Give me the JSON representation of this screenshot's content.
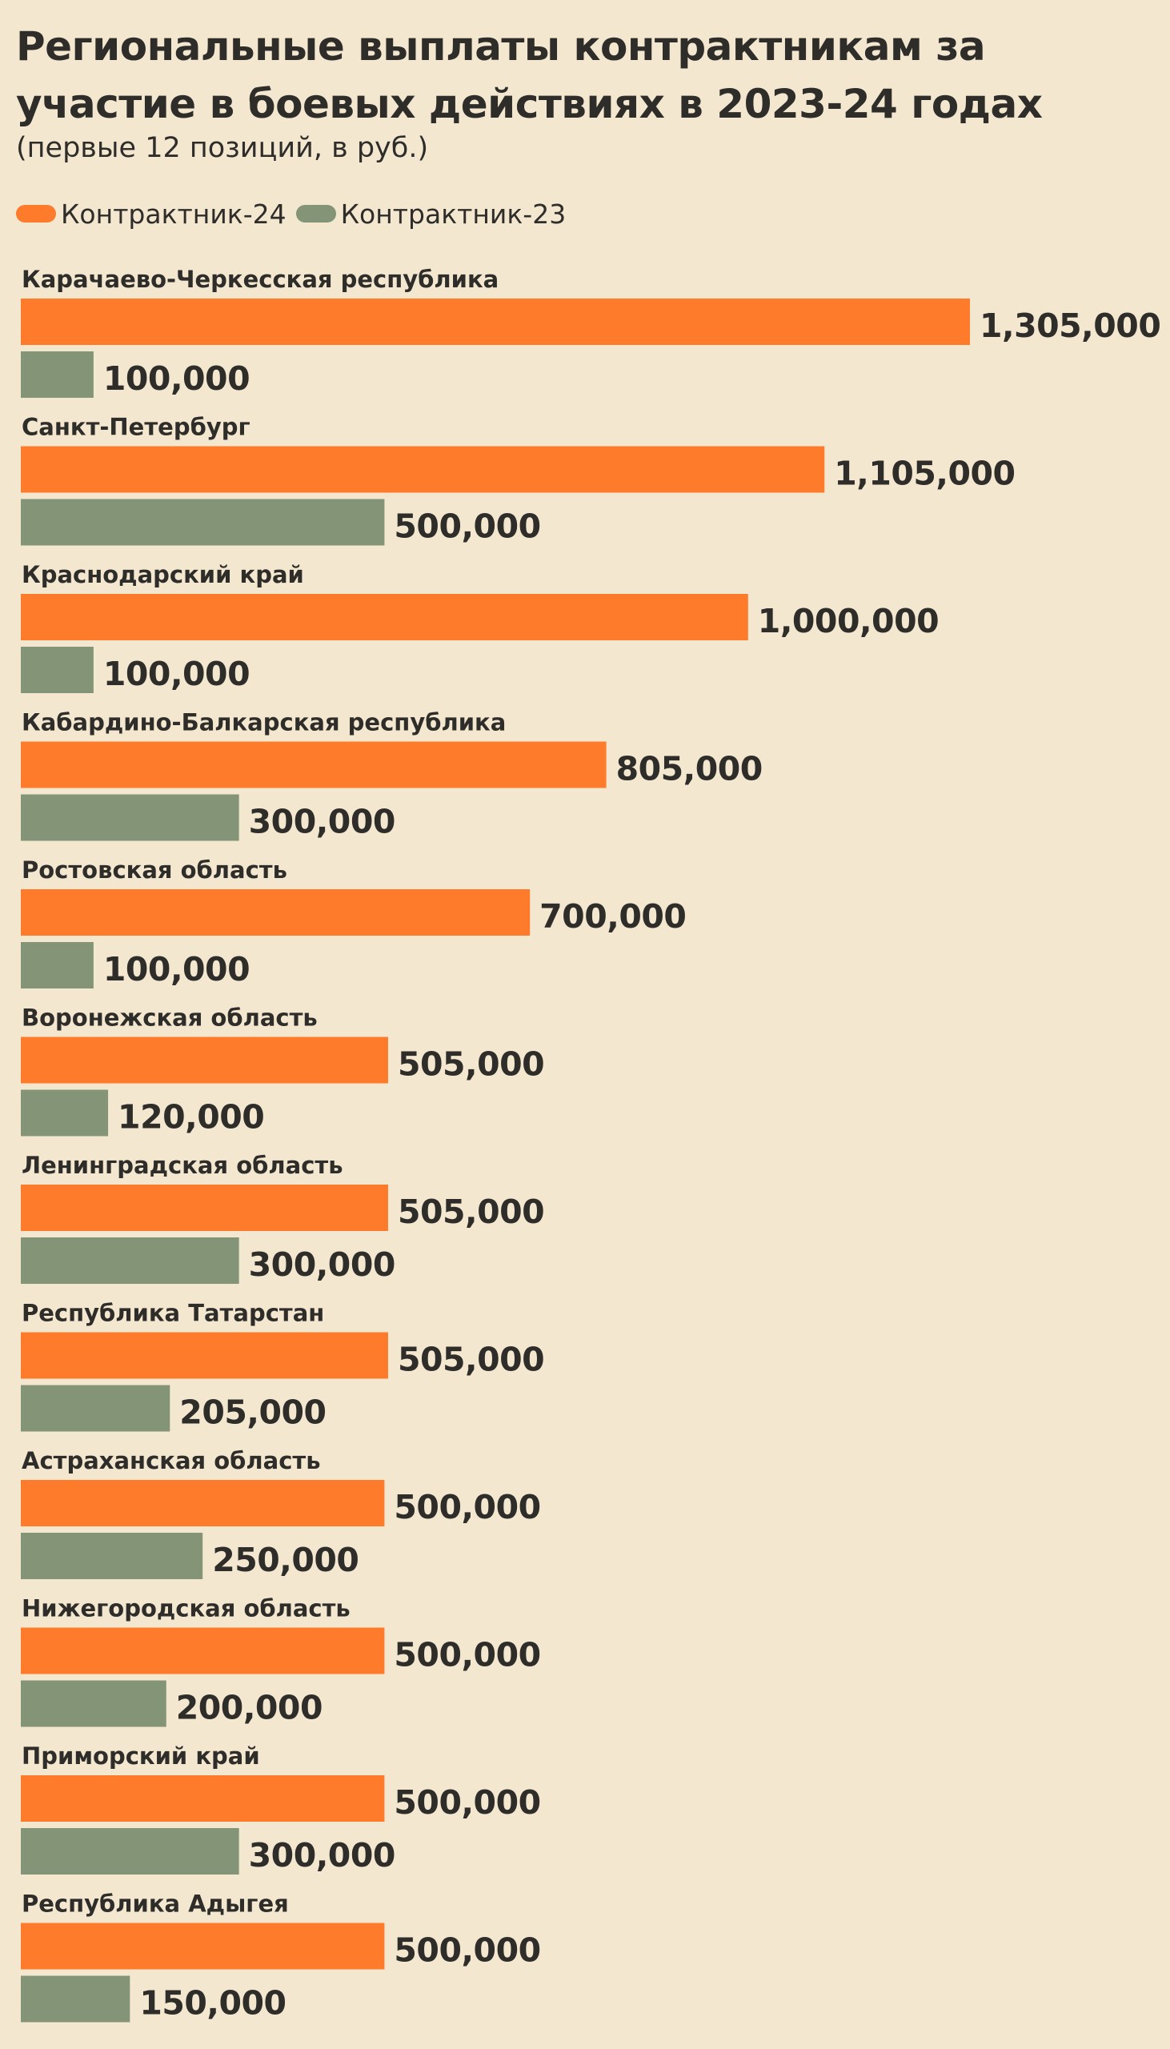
{
  "chart_data": {
    "type": "bar",
    "orientation": "horizontal",
    "title": "Региональные выплаты контрактникам за участие в боевых действиях в 2023-24 годах",
    "subtitle": "(первые 12 позиций, в руб.)",
    "xlabel": "",
    "ylabel": "",
    "grid": false,
    "legend_position": "top-left",
    "categories": [
      "Карачаево-Черкесская республика",
      "Санкт-Петербург",
      "Краснодарский край",
      "Кабардино-Балкарская республика",
      "Ростовская область",
      "Воронежская область",
      "Ленинградская область",
      "Республика Татарстан",
      "Астраханская область",
      "Нижегородская область",
      "Приморский край",
      "Республика Адыгея"
    ],
    "series": [
      {
        "name": "Контрактник-24",
        "color": "#ff7b2c",
        "values": [
          1305000,
          1105000,
          1000000,
          805000,
          700000,
          505000,
          505000,
          505000,
          500000,
          500000,
          500000,
          500000
        ],
        "labels": [
          "1,305,000",
          "1,105,000",
          "1,000,000",
          "805,000",
          "700,000",
          "505,000",
          "505,000",
          "505,000",
          "500,000",
          "500,000",
          "500,000",
          "500,000"
        ]
      },
      {
        "name": "Контрактник-23",
        "color": "#839576",
        "values": [
          100000,
          500000,
          100000,
          300000,
          100000,
          120000,
          300000,
          205000,
          250000,
          200000,
          300000,
          150000
        ],
        "labels": [
          "100,000",
          "500,000",
          "100,000",
          "300,000",
          "100,000",
          "120,000",
          "300,000",
          "205,000",
          "250,000",
          "200,000",
          "300,000",
          "150,000"
        ]
      }
    ],
    "xlim": [
      0,
      1305000
    ]
  }
}
